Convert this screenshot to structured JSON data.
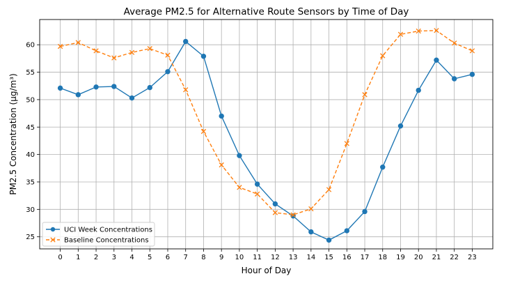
{
  "chart_data": {
    "type": "line",
    "title": "Average PM2.5 for Alternative Route Sensors by Time of Day",
    "xlabel": "Hour of Day",
    "ylabel": "PM2.5 Concentration (µg/m³)",
    "x": [
      0,
      1,
      2,
      3,
      4,
      5,
      6,
      7,
      8,
      9,
      10,
      11,
      12,
      13,
      14,
      15,
      16,
      17,
      18,
      19,
      20,
      21,
      22,
      23
    ],
    "x_tick_labels": [
      "0",
      "1",
      "2",
      "3",
      "4",
      "5",
      "6",
      "7",
      "8",
      "9",
      "10",
      "11",
      "12",
      "13",
      "14",
      "15",
      "16",
      "17",
      "18",
      "19",
      "20",
      "21",
      "22",
      "23"
    ],
    "xlim": [
      -1.15,
      24.15
    ],
    "ylim": [
      22.8,
      64.6
    ],
    "y_ticks": [
      25,
      30,
      35,
      40,
      45,
      50,
      55,
      60
    ],
    "y_tick_labels": [
      "25",
      "30",
      "35",
      "40",
      "45",
      "50",
      "55",
      "60"
    ],
    "grid": true,
    "legend_position": "lower-left",
    "series": [
      {
        "name": "UCI Week Concentrations",
        "color": "#1f77b4",
        "line_style": "solid",
        "marker": "circle",
        "values": [
          52.1,
          50.9,
          52.3,
          52.4,
          50.3,
          52.2,
          55.1,
          60.6,
          57.9,
          47.0,
          39.8,
          34.6,
          31.0,
          28.8,
          25.9,
          24.4,
          26.1,
          29.6,
          37.7,
          45.2,
          51.7,
          57.2,
          53.8,
          54.6
        ]
      },
      {
        "name": "Baseline Concentrations",
        "color": "#ff7f0e",
        "line_style": "dashed",
        "marker": "x",
        "values": [
          59.7,
          60.4,
          58.9,
          57.6,
          58.6,
          59.3,
          58.1,
          51.8,
          44.2,
          38.1,
          34.0,
          32.8,
          29.4,
          29.0,
          30.1,
          33.6,
          42.0,
          50.9,
          58.0,
          61.9,
          62.5,
          62.6,
          60.3,
          58.9
        ]
      }
    ]
  }
}
